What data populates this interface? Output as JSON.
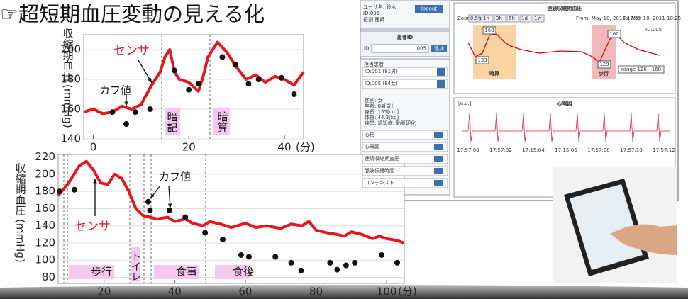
{
  "title": "☞超短期血圧変動の見える化",
  "chart_data": [
    {
      "type": "line",
      "ylabel": "収縮期血圧 (mmHg)",
      "xunit": "(分)",
      "xlim": [
        -2,
        44
      ],
      "ylim": [
        140,
        210
      ],
      "xticks": [
        0,
        20,
        40
      ],
      "yticks": [
        140,
        160,
        180,
        200
      ],
      "grid": true,
      "series": [
        {
          "name": "センサ",
          "kind": "line",
          "color": "#e8141e",
          "x": [
            -2,
            0,
            2,
            4,
            6,
            8,
            10,
            12,
            14,
            15,
            16,
            17,
            18,
            20,
            22,
            23,
            24,
            25,
            26,
            28,
            30,
            32,
            34,
            36,
            38,
            40,
            42,
            44
          ],
          "values": [
            158,
            160,
            157,
            158,
            162,
            160,
            163,
            175,
            185,
            195,
            200,
            185,
            180,
            178,
            172,
            182,
            195,
            200,
            205,
            198,
            188,
            180,
            183,
            178,
            182,
            180,
            176,
            185
          ]
        },
        {
          "name": "カフ値",
          "kind": "points",
          "color": "#111",
          "x": [
            4,
            6.9,
            8.8,
            11.9,
            17,
            20,
            22,
            27,
            29.7,
            32.5,
            34.6,
            39.4,
            42
          ],
          "values": [
            158,
            150,
            158,
            160,
            186,
            173,
            177,
            195,
            190,
            177,
            180,
            181,
            170
          ]
        }
      ],
      "annotations": [
        "センサ",
        "カフ値",
        "暗記",
        "暗算"
      ]
    },
    {
      "type": "line",
      "ylabel": "収縮期血圧 (mmHg)",
      "xunit": "(分)",
      "xlim": [
        7,
        105
      ],
      "ylim": [
        73,
        223
      ],
      "xticks": [
        20,
        40,
        60,
        80,
        100
      ],
      "yticks": [
        80,
        100,
        120,
        140,
        160,
        180,
        200,
        220
      ],
      "grid": true,
      "series": [
        {
          "name": "センサ",
          "kind": "line",
          "color": "#e8141e",
          "x": [
            7,
            10,
            13,
            15,
            17,
            19,
            21,
            23,
            25,
            27,
            29,
            31,
            33,
            35,
            38,
            40,
            43,
            45,
            48,
            50,
            53,
            56,
            60,
            63,
            66,
            70,
            73,
            76,
            78,
            80,
            83,
            86,
            88,
            90,
            93,
            96,
            98,
            100,
            103,
            105
          ],
          "values": [
            175,
            190,
            210,
            215,
            205,
            190,
            188,
            200,
            195,
            180,
            160,
            152,
            150,
            148,
            150,
            145,
            148,
            143,
            140,
            145,
            142,
            138,
            143,
            138,
            140,
            137,
            142,
            140,
            145,
            135,
            132,
            130,
            128,
            133,
            130,
            125,
            128,
            125,
            123,
            120
          ]
        },
        {
          "name": "カフ値",
          "kind": "points",
          "color": "#111",
          "x": [
            7.4,
            11.6,
            32.5,
            33,
            38.5,
            43,
            48.6,
            53.6,
            58.8,
            61,
            68.5,
            73,
            75.8,
            84,
            86,
            88.5,
            91,
            98.6,
            103
          ],
          "values": [
            180,
            182,
            168,
            158,
            158,
            150,
            132,
            124,
            106,
            104,
            104,
            97,
            88,
            97,
            89,
            94,
            97,
            106,
            97
          ]
        }
      ],
      "annotations": [
        "センサ",
        "カフ値",
        "歩行",
        "トイレ",
        "食事",
        "食後"
      ]
    }
  ],
  "ui": {
    "user": "ユーザ名: 鈴木",
    "id": "ID:001",
    "role": "役割:医師",
    "logout": "logout",
    "patient_id_label": "患者ID",
    "id_prefix": "ID:",
    "patient_id_value": "005",
    "add": "追加",
    "patients_header": "担当患者",
    "patients": [
      "ID:001 (81男)",
      "ID:005 (84女)"
    ],
    "details": [
      "性別:   女",
      "年齢:   84[歳]",
      "身長:   155[cm]",
      "体重:   44.3[kg]",
      "疾患:   認知症, 動脈硬化"
    ],
    "menu": [
      "心拍",
      "心電図",
      "連続収縮期血圧",
      "脈波伝播時間",
      "コンテキスト"
    ],
    "bp_title": "連続収縮期血圧",
    "zoom": [
      "Zoom",
      "0.5h",
      "1h",
      "3h",
      "6h",
      "1d",
      "1w"
    ],
    "from": "From: May 10, 2011 17:55",
    "to": "To: May 10, 2011 18:25",
    "legend": "ID:005",
    "point_labels": [
      "168",
      "133",
      "160",
      "129"
    ],
    "bands": [
      "暗算",
      "歩行"
    ],
    "range": "range 126 - 168",
    "ecg_title": "心電図",
    "ecg_unit": "[a.u.]",
    "ecg_times": [
      "17:57:00",
      "17:57:02",
      "17:15:04",
      "17:15:06",
      "17:57:08",
      "17:57:10",
      "17:57:12"
    ]
  }
}
